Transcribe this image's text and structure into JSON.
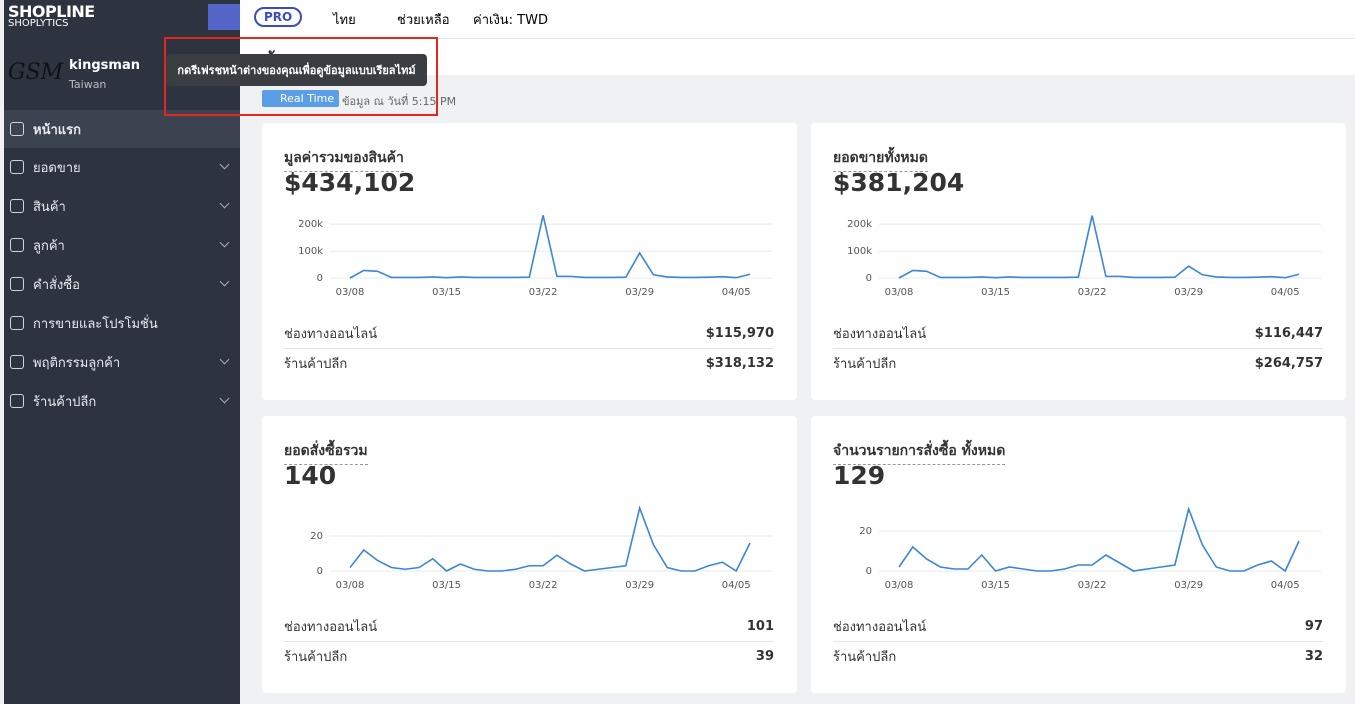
{
  "logo": {
    "brand": "SHOPLINE",
    "product": "SHOPLYTICS"
  },
  "store": {
    "logo": "GSM",
    "name": "kingsman",
    "region": "Taiwan"
  },
  "menu": [
    "หน้าแรก",
    "ยอดขาย",
    "สินค้า",
    "ลูกค้า",
    "คำสั่งซื้อ",
    "การขายและโปรโมชั่น",
    "พฤติกรรมลูกค้า",
    "ร้านค้าปลีก"
  ],
  "topbar": {
    "plan": "PRO",
    "language": "ไทย",
    "help": "ช่วยเหลือ",
    "currency": "ค่าเงิน: TWD"
  },
  "page": {
    "title": "หน้าแรก",
    "badge": "Real Time",
    "updated": "ข้อมูล ณ วันที่ 5:15 PM",
    "tooltip": "กดรีเฟรชหน้าต่างของคุณเพื่อดูข้อมูลแบบเรียลไทม์"
  },
  "cards": [
    {
      "title": "มูลค่ารวมของสินค้า",
      "total": "$434,102",
      "rows": [
        [
          "ช่องทางออนไลน์",
          "$115,970"
        ],
        [
          "ร้านค้าปลีก",
          "$318,132"
        ]
      ]
    },
    {
      "title": "ยอดขายทั้งหมด",
      "total": "$381,204",
      "rows": [
        [
          "ช่องทางออนไลน์",
          "$116,447"
        ],
        [
          "ร้านค้าปลีก",
          "$264,757"
        ]
      ]
    },
    {
      "title": "ยอดสั่งซื้อรวม",
      "total": "140",
      "rows": [
        [
          "ช่องทางออนไลน์",
          "101"
        ],
        [
          "ร้านค้าปลีก",
          "39"
        ]
      ]
    },
    {
      "title": "จำนวนรายการสั่งซื้อ ทั้งหมด",
      "total": "129",
      "rows": [
        [
          "ช่องทางออนไลน์",
          "97"
        ],
        [
          "ร้านค้าปลีก",
          "32"
        ]
      ]
    }
  ],
  "chart_data": [
    {
      "type": "line",
      "color": "#3a86d8",
      "categories": [
        "03/08",
        null,
        null,
        null,
        null,
        null,
        null,
        "03/15",
        null,
        null,
        null,
        null,
        null,
        null,
        "03/22",
        null,
        null,
        null,
        null,
        null,
        null,
        "03/29",
        null,
        null,
        null,
        null,
        null,
        null,
        "04/05",
        null
      ],
      "values": [
        0,
        28000,
        25000,
        2000,
        2000,
        2000,
        4000,
        1000,
        4000,
        2000,
        2000,
        2000,
        2000,
        3000,
        233000,
        6000,
        6000,
        2000,
        2000,
        2000,
        3000,
        93000,
        12000,
        4000,
        2000,
        2000,
        3000,
        5000,
        1000,
        14000
      ],
      "ylim": [
        0,
        260000
      ],
      "yticks": [
        0,
        {
          "value": 100000,
          "label": "100k"
        },
        {
          "value": 200000,
          "label": "200k"
        }
      ],
      "grid": true
    },
    {
      "type": "line",
      "color": "#3a86d8",
      "categories": [
        "03/08",
        null,
        null,
        null,
        null,
        null,
        null,
        "03/15",
        null,
        null,
        null,
        null,
        null,
        null,
        "03/22",
        null,
        null,
        null,
        null,
        null,
        null,
        "03/29",
        null,
        null,
        null,
        null,
        null,
        null,
        "04/05",
        null
      ],
      "values": [
        0,
        28000,
        25000,
        2000,
        2000,
        2000,
        4000,
        1000,
        4000,
        2000,
        2000,
        2000,
        2000,
        3000,
        232000,
        6000,
        6000,
        2000,
        2000,
        2000,
        3000,
        44000,
        12000,
        4000,
        2000,
        2000,
        3000,
        5000,
        1000,
        14000
      ],
      "ylim": [
        0,
        260000
      ],
      "yticks": [
        0,
        {
          "value": 100000,
          "label": "100k"
        },
        {
          "value": 200000,
          "label": "200k"
        }
      ],
      "grid": true
    },
    {
      "type": "line",
      "color": "#3a86d8",
      "categories": [
        "03/08",
        null,
        null,
        null,
        null,
        null,
        null,
        "03/15",
        null,
        null,
        null,
        null,
        null,
        null,
        "03/22",
        null,
        null,
        null,
        null,
        null,
        null,
        "03/29",
        null,
        null,
        null,
        null,
        null,
        null,
        "04/05",
        null
      ],
      "values": [
        2,
        12,
        6,
        2,
        1,
        2,
        7,
        0,
        4,
        1,
        0,
        0,
        1,
        3,
        3,
        9,
        4,
        0,
        1,
        2,
        3,
        36,
        15,
        2,
        0,
        0,
        3,
        5,
        0,
        16
      ],
      "ylim": [
        0,
        40
      ],
      "yticks": [
        0,
        20
      ],
      "grid": true
    },
    {
      "type": "line",
      "color": "#3a86d8",
      "categories": [
        "03/08",
        null,
        null,
        null,
        null,
        null,
        null,
        "03/15",
        null,
        null,
        null,
        null,
        null,
        null,
        "03/22",
        null,
        null,
        null,
        null,
        null,
        null,
        "03/29",
        null,
        null,
        null,
        null,
        null,
        null,
        "04/05",
        null
      ],
      "values": [
        2,
        12,
        6,
        2,
        1,
        1,
        8,
        0,
        2,
        1,
        0,
        0,
        1,
        3,
        3,
        8,
        4,
        0,
        1,
        2,
        3,
        31,
        13,
        2,
        0,
        0,
        3,
        5,
        0,
        15
      ],
      "ylim": [
        0,
        35
      ],
      "yticks": [
        0,
        20
      ],
      "grid": true
    }
  ]
}
